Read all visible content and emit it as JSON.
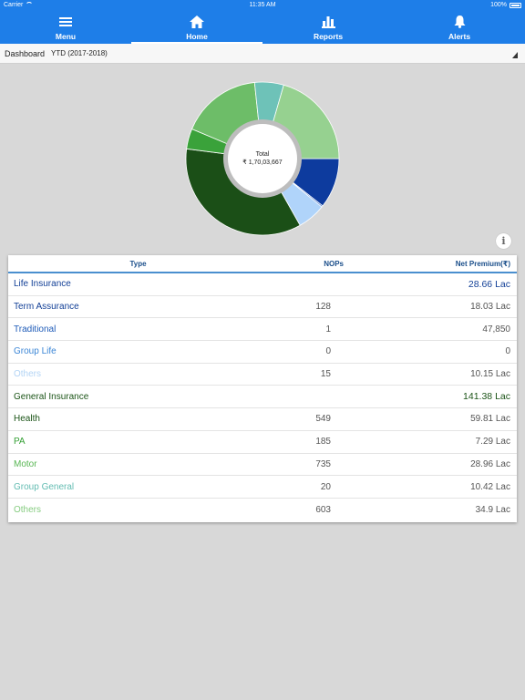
{
  "status": {
    "carrier": "Carrier",
    "time": "11:35 AM",
    "battery": "100%"
  },
  "nav": {
    "items": [
      {
        "label": "Menu",
        "icon": "menu-icon"
      },
      {
        "label": "Home",
        "icon": "home-icon",
        "active": true
      },
      {
        "label": "Reports",
        "icon": "bar-chart-icon"
      },
      {
        "label": "Alerts",
        "icon": "bell-icon"
      }
    ]
  },
  "filter": {
    "label": "Dashboard",
    "period": "YTD (2017-2018)"
  },
  "chart": {
    "center_label": "Total",
    "center_value": "₹ 1,70,03,667"
  },
  "chart_data": {
    "type": "pie",
    "style": "donut",
    "categories": [
      "Term Assurance",
      "Traditional",
      "Group Life",
      "Others (Life)",
      "Health",
      "PA",
      "Motor",
      "Group General",
      "Others (General)"
    ],
    "values": [
      1803000,
      47850,
      0,
      1015000,
      5981000,
      729000,
      2896000,
      1042000,
      3490000
    ],
    "colors": [
      "#0d3b9e",
      "#1a56c0",
      "#4a8fe0",
      "#b0d4fa",
      "#1b4f17",
      "#3aa23a",
      "#6dbd68",
      "#6ec2b8",
      "#96d190"
    ]
  },
  "table": {
    "headers": {
      "type": "Type",
      "nops": "NOPs",
      "premium": "Net Premium(₹)"
    },
    "rows": [
      {
        "type": "Life Insurance",
        "nops": "",
        "premium": "28.66 Lac",
        "color": "#123f96",
        "group": true
      },
      {
        "type": "Term Assurance",
        "nops": "128",
        "premium": "18.03 Lac",
        "color": "#123f96"
      },
      {
        "type": "Traditional",
        "nops": "1",
        "premium": "47,850",
        "color": "#1e5bb8"
      },
      {
        "type": "Group Life",
        "nops": "0",
        "premium": "0",
        "color": "#3b86d6"
      },
      {
        "type": "Others",
        "nops": "15",
        "premium": "10.15 Lac",
        "color": "#b3d4f5"
      },
      {
        "type": "General Insurance",
        "nops": "",
        "premium": "141.38 Lac",
        "color": "#1b5417",
        "group": true
      },
      {
        "type": "Health",
        "nops": "549",
        "premium": "59.81 Lac",
        "color": "#1b5417"
      },
      {
        "type": "PA",
        "nops": "185",
        "premium": "7.29 Lac",
        "color": "#35a035"
      },
      {
        "type": "Motor",
        "nops": "735",
        "premium": "28.96 Lac",
        "color": "#58b653"
      },
      {
        "type": "Group General",
        "nops": "20",
        "premium": "10.42 Lac",
        "color": "#63bcb2"
      },
      {
        "type": "Others",
        "nops": "603",
        "premium": "34.9 Lac",
        "color": "#86cc80"
      }
    ]
  }
}
